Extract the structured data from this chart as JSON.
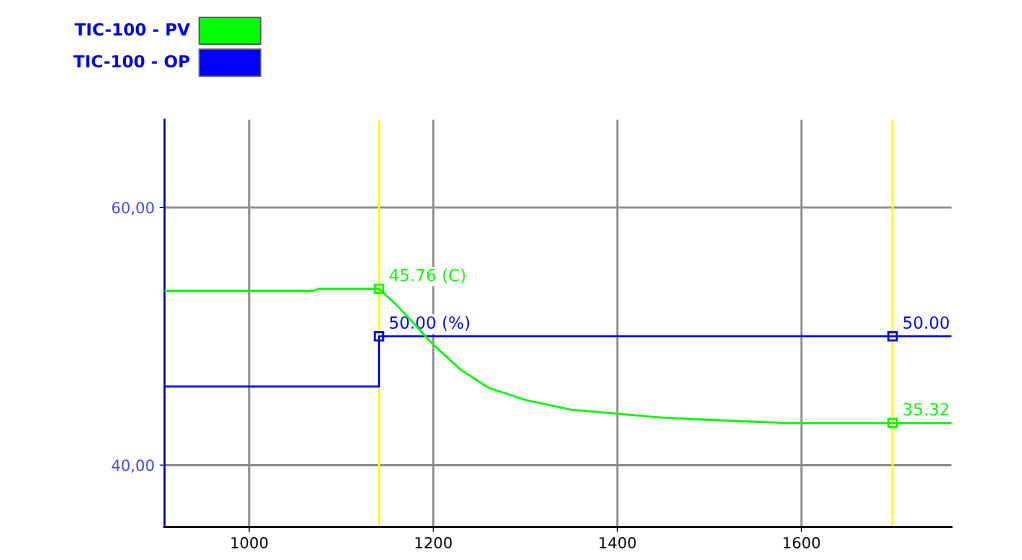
{
  "chart_data": {
    "type": "line",
    "legend": "top left",
    "grid": true,
    "line_style": "solid",
    "xlim": [
      908,
      1763
    ],
    "xticks": [
      1000,
      1200,
      1400,
      1600
    ],
    "ylim": [
      35.2,
      66.8
    ],
    "yticks": [
      {
        "value": 40,
        "label": "40,00"
      },
      {
        "value": 60,
        "label": "60,00"
      }
    ],
    "y2lim": [
      27.22,
      58.92
    ],
    "ref_lines": [
      {
        "axis": "x",
        "value": 1141,
        "color": "#ffff00"
      },
      {
        "axis": "x",
        "value": 1699,
        "color": "#ffff00"
      }
    ],
    "series": [
      {
        "name": "TIC-100 - PV",
        "color": "#00ff00",
        "axis": "y2",
        "x": [
          908,
          1070,
          1075,
          1141,
          1160,
          1180,
          1200,
          1230,
          1260,
          1300,
          1350,
          1400,
          1450,
          1500,
          1580,
          1699,
          1763
        ],
        "values": [
          45.6,
          45.6,
          45.76,
          45.76,
          44.51,
          42.96,
          41.4,
          39.45,
          38.05,
          37.11,
          36.34,
          36.03,
          35.72,
          35.56,
          35.32,
          35.32,
          35.32
        ],
        "value_labels": [
          null,
          null,
          null,
          "45.76 (C)",
          null,
          null,
          null,
          null,
          null,
          null,
          null,
          null,
          null,
          null,
          null,
          "35.32",
          null
        ]
      },
      {
        "name": "TIC-100 - OP",
        "color": "#0000ff",
        "type": "step",
        "x": [
          908,
          1141,
          1699,
          1763
        ],
        "values": [
          46.1,
          50,
          50,
          50
        ],
        "value_labels": [
          null,
          "50.00 (%)",
          "50.00",
          null
        ]
      }
    ]
  }
}
